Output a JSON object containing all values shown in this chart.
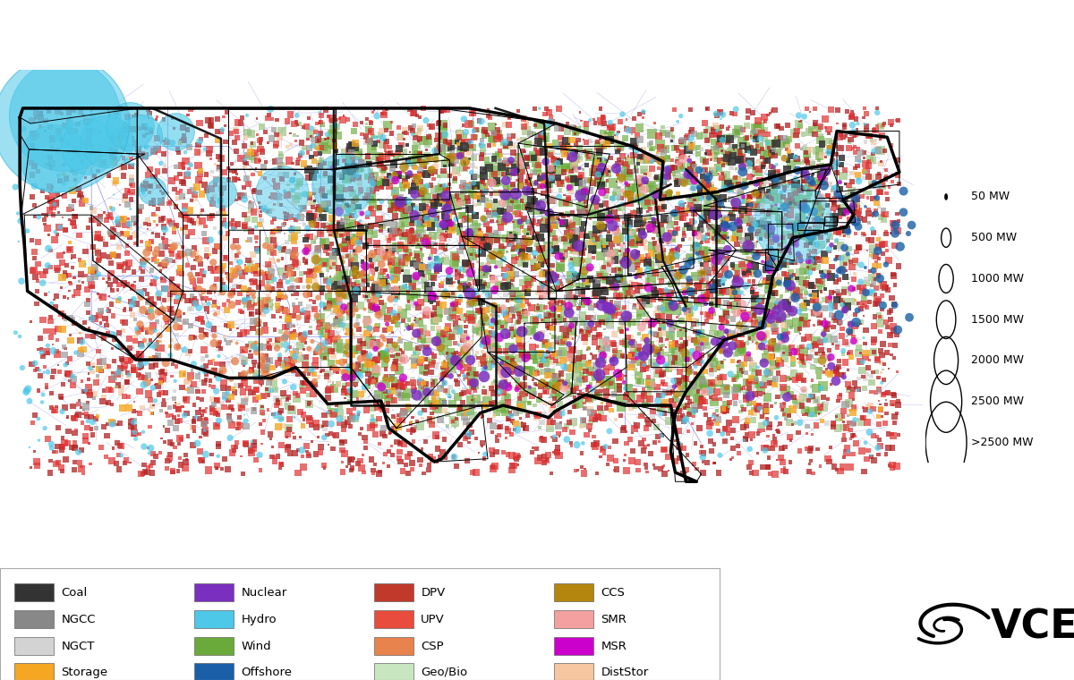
{
  "legend_items": [
    {
      "label": "Coal",
      "color": "#333333",
      "col": 0,
      "row": 0
    },
    {
      "label": "NGCC",
      "color": "#888888",
      "col": 0,
      "row": 1
    },
    {
      "label": "NGCT",
      "color": "#d3d3d3",
      "col": 0,
      "row": 2
    },
    {
      "label": "Storage",
      "color": "#f5a623",
      "col": 0,
      "row": 3
    },
    {
      "label": "Nuclear",
      "color": "#7b2fbe",
      "col": 1,
      "row": 0
    },
    {
      "label": "Hydro",
      "color": "#4dc8e8",
      "col": 1,
      "row": 1
    },
    {
      "label": "Wind",
      "color": "#6aaa3a",
      "col": 1,
      "row": 2
    },
    {
      "label": "Offshore",
      "color": "#1a5fa8",
      "col": 1,
      "row": 3
    },
    {
      "label": "DPV",
      "color": "#c0392b",
      "col": 2,
      "row": 0
    },
    {
      "label": "UPV",
      "color": "#e74c3c",
      "col": 2,
      "row": 1
    },
    {
      "label": "CSP",
      "color": "#e8834d",
      "col": 2,
      "row": 2
    },
    {
      "label": "Geo/Bio",
      "color": "#c8e6c0",
      "col": 2,
      "row": 3
    },
    {
      "label": "CCS",
      "color": "#b5860d",
      "col": 3,
      "row": 0
    },
    {
      "label": "SMR",
      "color": "#f4a0a0",
      "col": 3,
      "row": 1
    },
    {
      "label": "MSR",
      "color": "#cc00cc",
      "col": 3,
      "row": 2
    },
    {
      "label": "DistStor",
      "color": "#f5c6a0",
      "col": 3,
      "row": 3
    }
  ],
  "size_legend_labels": [
    "50 MW",
    "500 MW",
    "1000 MW",
    "1500 MW",
    "2000 MW",
    "2500 MW",
    ">2500 MW"
  ],
  "size_legend_radii": [
    1.5,
    4,
    6,
    8,
    10,
    13,
    17
  ]
}
